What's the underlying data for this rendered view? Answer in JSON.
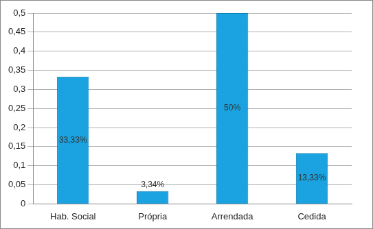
{
  "chart_data": {
    "type": "bar",
    "categories": [
      "Hab. Social",
      "Própria",
      "Arrendada",
      "Cedida"
    ],
    "values": [
      0.3333,
      0.0334,
      0.5,
      0.1333
    ],
    "value_labels": [
      "33,33%",
      "3,34%",
      "50%",
      "13,33%"
    ],
    "data_labels": true,
    "color": "#1aa3e0",
    "ylim": [
      0,
      0.5
    ],
    "yticks": [
      0,
      {
        "value": 0.05,
        "label": "0,05"
      },
      {
        "value": 0.1,
        "label": "0,1"
      },
      {
        "value": 0.15,
        "label": "0,15"
      },
      {
        "value": 0.2,
        "label": "0,2"
      },
      {
        "value": 0.25,
        "label": "0,25"
      },
      {
        "value": 0.3,
        "label": "0,3"
      },
      {
        "value": 0.35,
        "label": "0,35"
      },
      {
        "value": 0.4,
        "label": "0,4"
      },
      {
        "value": 0.45,
        "label": "0,45"
      },
      {
        "value": 0.5,
        "label": "0,5"
      }
    ],
    "grid": true
  }
}
